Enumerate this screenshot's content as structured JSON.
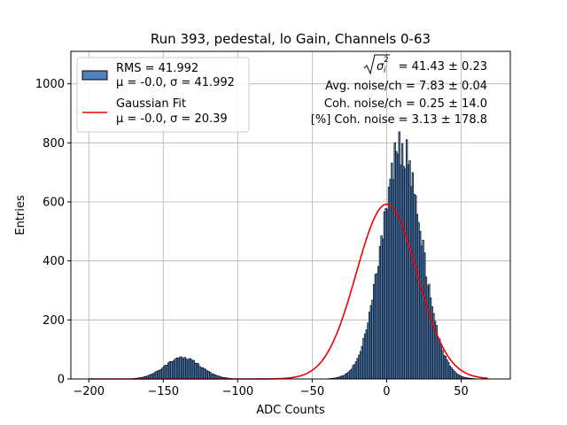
{
  "chart_data": {
    "type": "bar",
    "title": "Run 393, pedestal, lo Gain, Channels 0-63",
    "xlabel": "ADC Counts",
    "ylabel": "Entries",
    "xlim": [
      -212,
      83
    ],
    "ylim": [
      0,
      1110
    ],
    "xticks": [
      -200,
      -150,
      -100,
      -50,
      0,
      50
    ],
    "yticks": [
      0,
      200,
      400,
      600,
      800,
      1000
    ],
    "grid": true,
    "legend_position": "top-left",
    "bin_width": 1,
    "histogram": {
      "name": "RMS = 41.992",
      "stats_line": "μ = -0.0, σ = 41.992",
      "color": "#4f81bd",
      "edgecolor": "#000000",
      "components": [
        {
          "center": -137,
          "sigma": 12,
          "peak": 72,
          "range": [
            -170,
            -105
          ]
        },
        {
          "center": 10,
          "sigma": 13.5,
          "peak": 785,
          "range": [
            -42,
            68
          ]
        }
      ]
    },
    "fit": {
      "name": "Gaussian Fit",
      "stats_line": "μ = -0.0, σ = 20.39",
      "color": "#ee0000",
      "mu": 0,
      "sigma": 20.39,
      "amplitude": 592,
      "x_range": [
        -200,
        68
      ]
    },
    "annotations": {
      "sigma_value": "= 41.43 ± 0.23",
      "avg_noise": "Avg. noise/ch = 7.83 ± 0.04",
      "coh_noise": "Coh. noise/ch = 0.25 ± 14.0",
      "coh_pct": "[%] Coh. noise = 3.13 ± 178.8"
    }
  }
}
